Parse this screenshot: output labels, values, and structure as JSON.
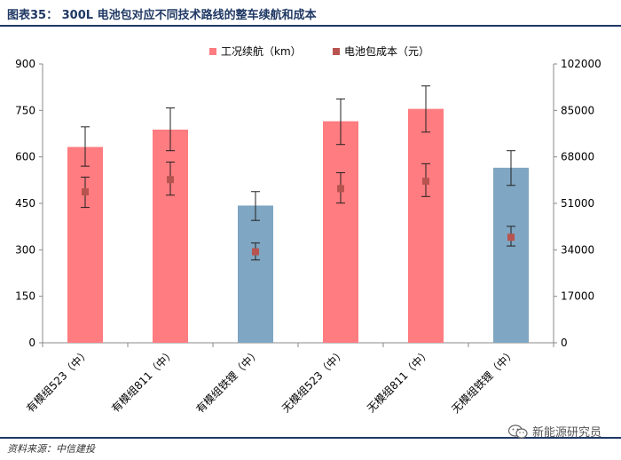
{
  "header": {
    "title": "图表35： 300L 电池包对应不同技术路线的整车续航和成本"
  },
  "footer": {
    "source": "资料来源：中信建投",
    "watermark": "新能源研究员"
  },
  "colors": {
    "bar_pink": "#FF7C80",
    "bar_blue": "#7FA6C2",
    "marker": "#B85450",
    "header_navy": "#1F3864"
  },
  "icons": {
    "watermark": "wechat-icon"
  },
  "chart_data": {
    "type": "bar",
    "categories": [
      "有模组523（中）",
      "有模组811（中）",
      "有模组铁锂（中）",
      "无模组523（中）",
      "无模组811（中）",
      "无模组铁锂（中）"
    ],
    "series": [
      {
        "name": "工况续航（km）",
        "axis": "left",
        "type": "bar",
        "values": [
          632,
          688,
          443,
          715,
          755,
          565
        ],
        "error_low": [
          570,
          620,
          395,
          640,
          680,
          508
        ],
        "error_high": [
          697,
          758,
          488,
          787,
          829,
          620
        ],
        "bar_colors": [
          "#FF7C80",
          "#FF7C80",
          "#7FA6C2",
          "#FF7C80",
          "#FF7C80",
          "#7FA6C2"
        ]
      },
      {
        "name": "电池包成本（元）",
        "axis": "right",
        "type": "scatter",
        "values": [
          55200,
          59700,
          33300,
          56400,
          59100,
          38600
        ],
        "error_low": [
          49500,
          54000,
          30300,
          51100,
          53500,
          35400
        ],
        "error_high": [
          60600,
          66100,
          36500,
          62200,
          65500,
          42600
        ]
      }
    ],
    "y_left": {
      "min": 0,
      "max": 900,
      "ticks": [
        0,
        150,
        300,
        450,
        600,
        750,
        900
      ]
    },
    "y_right": {
      "min": 0,
      "max": 102000,
      "ticks": [
        0,
        17000,
        34000,
        51000,
        68000,
        85000,
        102000
      ]
    },
    "grid": false,
    "legend_position": "top"
  }
}
